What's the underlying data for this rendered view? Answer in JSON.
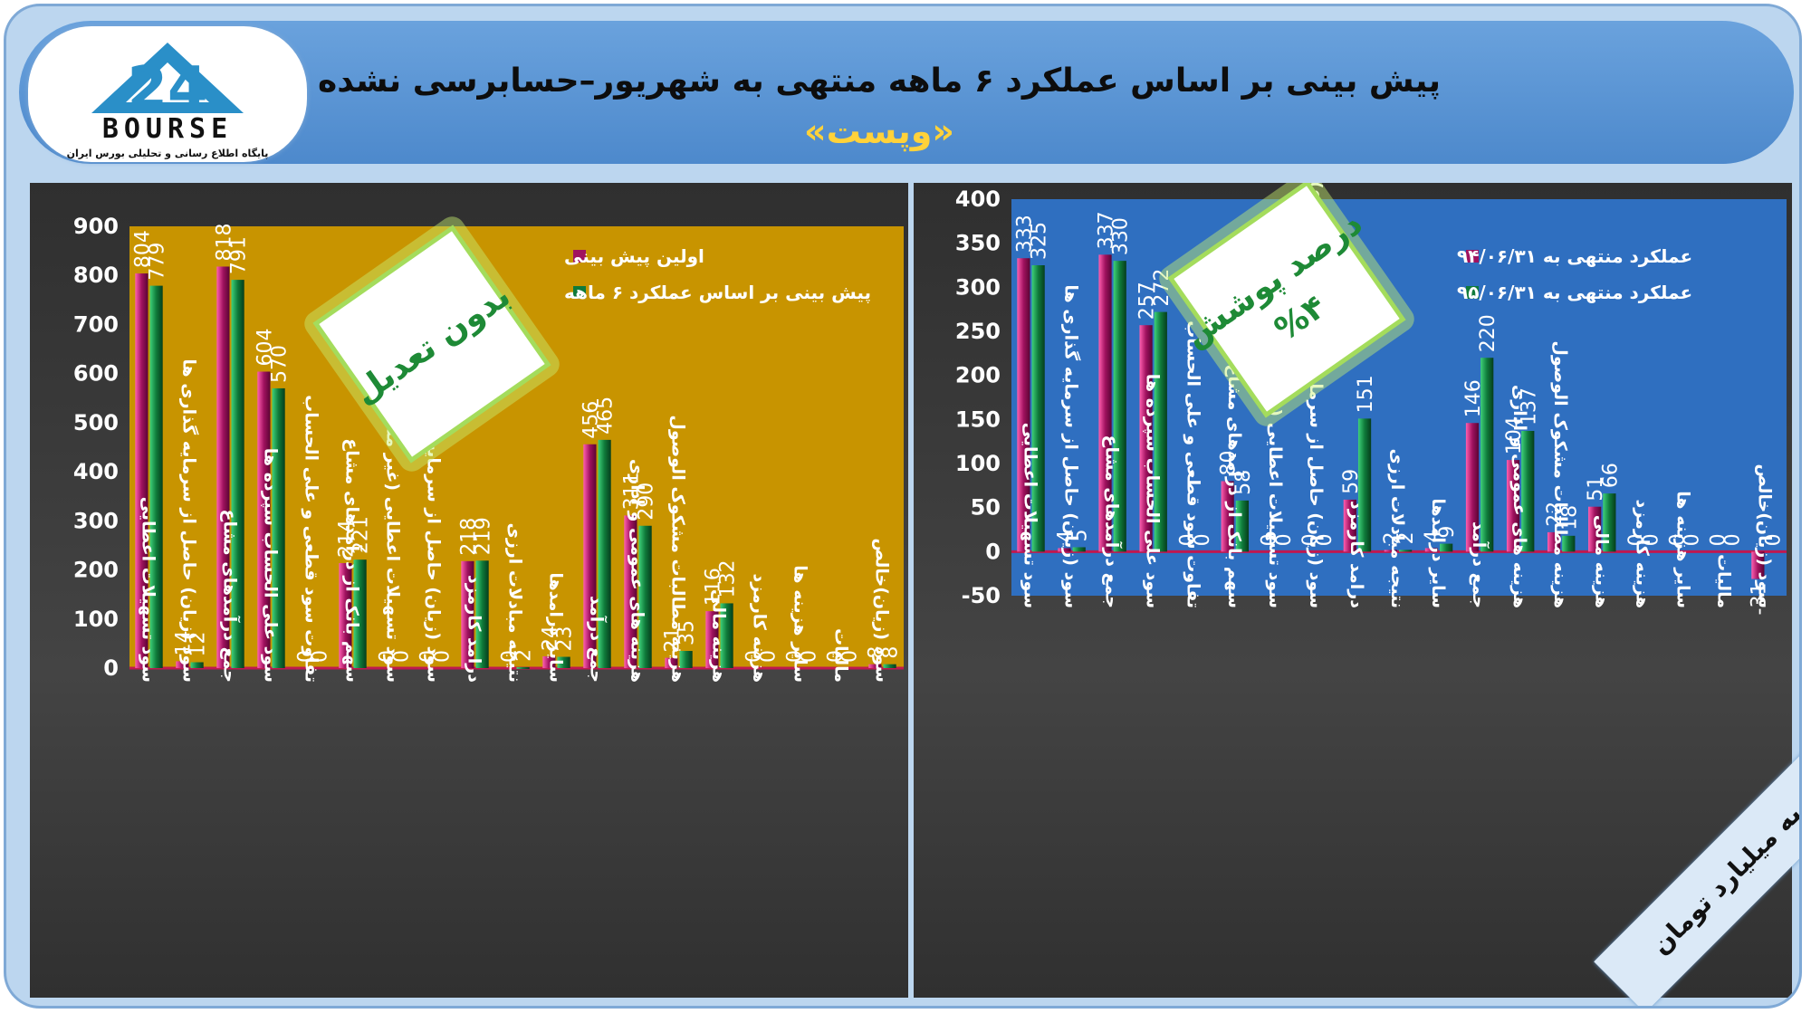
{
  "header": {
    "title": "پیش بینی بر اساس عملکرد ۶ ماهه منتهی به شهریور–حسابرسی نشده",
    "subtitle": "«وپست»"
  },
  "logo": {
    "word": "BOURSE",
    "number": "24",
    "tagline": "پایگاه اطلاع رسانی و تحلیلی بورس ایران"
  },
  "units_label": "ارقام به میلیارد تومان",
  "colors": {
    "left_plot_bg": "#c89400",
    "right_plot_bg": "#2f6fc0",
    "series_magenta": "#a0125f",
    "series_green": "#0f7a3a"
  },
  "chart_data": [
    {
      "type": "bar",
      "title": "",
      "xlabel": "",
      "ylabel": "",
      "ylim": [
        0,
        900
      ],
      "yticks": [
        0,
        100,
        200,
        300,
        400,
        500,
        600,
        700,
        800,
        900
      ],
      "legend_position": "top-right",
      "badge": "بدون تعدیل",
      "categories": [
        "سود تسهیلات اعطایی",
        "سود (زیان) حاصل از سرمایه گذاری ها",
        "جمع درآمدهای مشاع",
        "سود علی الحساب سپرده ها",
        "تفاوت سود قطعی و علی الحساب",
        "سهم بانک از درآمدهای مشاع",
        "سود تسهیلات اعطایی (غیر مشاع)",
        "سود (زیان) حاصل از سرمایه گذاری ها",
        "درامد کارمزد",
        "نتیجه مبادلات ارزی",
        "سایر درامدها",
        "جمع درآمد",
        "هزینه های عمومی و اداری",
        "هزینه مطالبات مشکوک الوصول",
        "هزینه مالی",
        "هزینه کارمزد",
        "سایر هزینه ها",
        "مالیات",
        "سود (زیان)خالص"
      ],
      "series": [
        {
          "name": "اولین پیش بینی",
          "values": [
            804,
            14,
            818,
            604,
            0,
            214,
            0,
            0,
            218,
            0,
            24,
            456,
            311,
            21,
            116,
            0,
            0,
            0,
            8
          ]
        },
        {
          "name": "پیش بینی بر اساس عملکرد ۶ ماهه",
          "values": [
            779,
            12,
            791,
            570,
            0,
            221,
            0,
            0,
            219,
            2,
            23,
            465,
            290,
            35,
            132,
            0,
            0,
            0,
            8
          ]
        }
      ]
    },
    {
      "type": "bar",
      "title": "",
      "xlabel": "",
      "ylabel": "",
      "ylim": [
        -50,
        400
      ],
      "yticks": [
        -50,
        0,
        50,
        100,
        150,
        200,
        250,
        300,
        350,
        400
      ],
      "legend_position": "top-right",
      "badge_line1": "درصد پوشش",
      "badge_line2": "%۴",
      "categories": [
        "سود تسهیلات اعطایی",
        "سود (زیان) حاصل از سرمایه گذاری ها",
        "جمع درآمدهای مشاع",
        "سود علی الحساب سپرده ها",
        "تفاوت سود قطعی و علی الحساب",
        "سهم بانک از درآمدهای مشاع",
        "سود تسهیلات اعطایی (غیرمشاع)",
        "سود (زیان) حاصل از سرمایه گذاری ها (غیر مشاع)",
        "درامد کارمزد",
        "نتیجه مبادلات ارزی",
        "سایر درامدها",
        "جمع درآمد",
        "هزینه های عمومی و اداری",
        "هزینه مطالبات مشکوک الوصول",
        "هزینه مالی",
        "هزینه کارمزد",
        "سایر هزینه ها",
        "مالیات",
        "سود (زیان)خالص"
      ],
      "series": [
        {
          "name": "عملکرد منتهی به ۹۴/۰۶/۳۱",
          "values": [
            333,
            4,
            337,
            257,
            0,
            80,
            0,
            0,
            59,
            2,
            4,
            146,
            104,
            22,
            51,
            0,
            0,
            0,
            -31
          ]
        },
        {
          "name": "عملکرد منتهی به ۹۵/۰۶/۳۱",
          "values": [
            325,
            5,
            330,
            272,
            0,
            58,
            0,
            0,
            151,
            2,
            9,
            220,
            137,
            18,
            66,
            0,
            0,
            0,
            0
          ]
        }
      ]
    }
  ]
}
